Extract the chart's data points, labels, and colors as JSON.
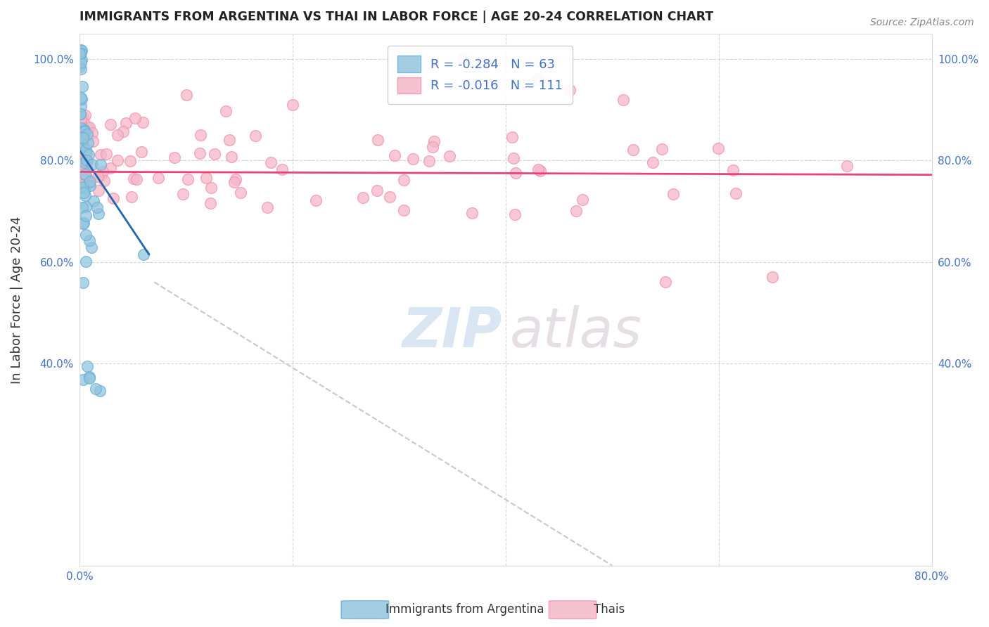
{
  "title": "IMMIGRANTS FROM ARGENTINA VS THAI IN LABOR FORCE | AGE 20-24 CORRELATION CHART",
  "source": "Source: ZipAtlas.com",
  "ylabel": "In Labor Force | Age 20-24",
  "xlim": [
    0.0,
    0.8
  ],
  "ylim": [
    0.0,
    1.05
  ],
  "argentina_color": "#92c5de",
  "argentina_edge_color": "#6baed6",
  "thai_color": "#f4b8c8",
  "thai_edge_color": "#f48fb1",
  "argentina_line_color": "#2166ac",
  "thai_line_color": "#e8447a",
  "dash_line_color": "#bbbbbb",
  "argentina_R": -0.284,
  "argentina_N": 63,
  "thai_R": -0.016,
  "thai_N": 111,
  "legend_text_color": "#4472c4",
  "legend_argentina": "Immigrants from Argentina",
  "legend_thai": "Thais",
  "background_color": "#ffffff",
  "grid_color": "#cccccc",
  "title_color": "#222222",
  "axis_label_color": "#333333",
  "tick_label_color": "#4472c4",
  "source_color": "#888888",
  "watermark_zip_color": "#c5d8ee",
  "watermark_atlas_color": "#d8cdd8",
  "argentina_line_x0": 0.0,
  "argentina_line_y0": 0.82,
  "argentina_line_x1": 0.065,
  "argentina_line_y1": 0.615,
  "thai_line_x0": 0.0,
  "thai_line_y0": 0.778,
  "thai_line_x1": 0.8,
  "thai_line_y1": 0.772,
  "dash_line_x0": 0.07,
  "dash_line_y0": 0.56,
  "dash_line_x1": 0.5,
  "dash_line_y1": 0.0
}
